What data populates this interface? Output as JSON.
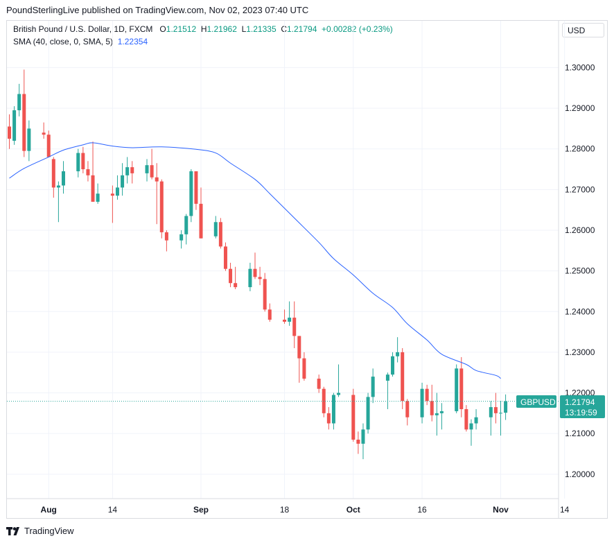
{
  "attribution": "PoundSterlingLive published on TradingView.com, Nov 02, 2023 07:40 UTC",
  "legend": {
    "symbol_line": "British Pound / U.S. Dollar, 1D, FXCM",
    "open_key": "O",
    "open": "1.21512",
    "high_key": "H",
    "high": "1.21962",
    "low_key": "L",
    "low": "1.21335",
    "close_key": "C",
    "close": "1.21794",
    "change": "+0.00282 (+0.23%)",
    "sma_label": "SMA (40, close, 0, SMA, 5)",
    "sma_value": "1.22354"
  },
  "currency_button": "USD",
  "price_tag": {
    "symbol": "GBPUSD",
    "price": "1.21794",
    "countdown": "13:19:59"
  },
  "brand": "TradingView",
  "colors": {
    "up": "#26a69a",
    "down": "#ef5350",
    "sma": "#2962ff",
    "grid": "#f0f3fa",
    "axis_text": "#131722"
  },
  "chart_data": {
    "type": "candlestick",
    "title": "British Pound / U.S. Dollar, 1D, FXCM",
    "y_ticks": [
      "1.30000",
      "1.29000",
      "1.28000",
      "1.27000",
      "1.26000",
      "1.25000",
      "1.24000",
      "1.23000",
      "1.22000",
      "1.21000",
      "1.20000"
    ],
    "ylim": [
      1.194,
      1.3115
    ],
    "x_ticks": [
      {
        "label": "Aug",
        "date": "2023-08-01",
        "bold": true
      },
      {
        "label": "14",
        "date": "2023-08-14",
        "bold": false
      },
      {
        "label": "Sep",
        "date": "2023-09-01",
        "bold": true
      },
      {
        "label": "18",
        "date": "2023-09-18",
        "bold": false
      },
      {
        "label": "Oct",
        "date": "2023-10-02",
        "bold": true
      },
      {
        "label": "16",
        "date": "2023-10-16",
        "bold": false
      },
      {
        "label": "Nov",
        "date": "2023-11-01",
        "bold": true
      },
      {
        "label": "14",
        "date": "2023-11-14",
        "bold": false
      }
    ],
    "last_price": 1.21794,
    "candles": [
      {
        "d": "2023-07-24",
        "o": 1.2855,
        "h": 1.2885,
        "l": 1.28,
        "c": 1.2825
      },
      {
        "d": "2023-07-25",
        "o": 1.282,
        "h": 1.2905,
        "l": 1.281,
        "c": 1.2895
      },
      {
        "d": "2023-07-26",
        "o": 1.2895,
        "h": 1.296,
        "l": 1.288,
        "c": 1.2935
      },
      {
        "d": "2023-07-27",
        "o": 1.2935,
        "h": 1.2995,
        "l": 1.278,
        "c": 1.2795
      },
      {
        "d": "2023-07-28",
        "o": 1.2795,
        "h": 1.287,
        "l": 1.277,
        "c": 1.285
      },
      {
        "d": "2023-07-31",
        "o": 1.284,
        "h": 1.2865,
        "l": 1.2825,
        "c": 1.2835
      },
      {
        "d": "2023-08-01",
        "o": 1.2835,
        "h": 1.2845,
        "l": 1.278,
        "c": 1.278
      },
      {
        "d": "2023-08-02",
        "o": 1.2775,
        "h": 1.278,
        "l": 1.268,
        "c": 1.2705
      },
      {
        "d": "2023-08-03",
        "o": 1.2705,
        "h": 1.272,
        "l": 1.262,
        "c": 1.271
      },
      {
        "d": "2023-08-04",
        "o": 1.271,
        "h": 1.277,
        "l": 1.269,
        "c": 1.2745
      },
      {
        "d": "2023-08-07",
        "o": 1.2745,
        "h": 1.28,
        "l": 1.273,
        "c": 1.279
      },
      {
        "d": "2023-08-08",
        "o": 1.279,
        "h": 1.2805,
        "l": 1.274,
        "c": 1.275
      },
      {
        "d": "2023-08-09",
        "o": 1.275,
        "h": 1.277,
        "l": 1.272,
        "c": 1.2735
      },
      {
        "d": "2023-08-10",
        "o": 1.2735,
        "h": 1.2818,
        "l": 1.267,
        "c": 1.267
      },
      {
        "d": "2023-08-11",
        "o": 1.267,
        "h": 1.2715,
        "l": 1.2665,
        "c": 1.269
      },
      {
        "d": "2023-08-14",
        "o": 1.269,
        "h": 1.271,
        "l": 1.2618,
        "c": 1.2685
      },
      {
        "d": "2023-08-15",
        "o": 1.2685,
        "h": 1.2735,
        "l": 1.2675,
        "c": 1.2705
      },
      {
        "d": "2023-08-16",
        "o": 1.2705,
        "h": 1.2765,
        "l": 1.2685,
        "c": 1.2735
      },
      {
        "d": "2023-08-17",
        "o": 1.2735,
        "h": 1.278,
        "l": 1.2715,
        "c": 1.2755
      },
      {
        "d": "2023-08-18",
        "o": 1.2755,
        "h": 1.277,
        "l": 1.2715,
        "c": 1.274
      },
      {
        "d": "2023-08-21",
        "o": 1.274,
        "h": 1.2775,
        "l": 1.272,
        "c": 1.276
      },
      {
        "d": "2023-08-22",
        "o": 1.276,
        "h": 1.28,
        "l": 1.2725,
        "c": 1.273
      },
      {
        "d": "2023-08-23",
        "o": 1.273,
        "h": 1.2765,
        "l": 1.2615,
        "c": 1.272
      },
      {
        "d": "2023-08-24",
        "o": 1.272,
        "h": 1.2725,
        "l": 1.258,
        "c": 1.2595
      },
      {
        "d": "2023-08-25",
        "o": 1.2595,
        "h": 1.26,
        "l": 1.2548,
        "c": 1.2575
      },
      {
        "d": "2023-08-28",
        "o": 1.2575,
        "h": 1.26,
        "l": 1.2555,
        "c": 1.259
      },
      {
        "d": "2023-08-29",
        "o": 1.259,
        "h": 1.264,
        "l": 1.2565,
        "c": 1.2635
      },
      {
        "d": "2023-08-30",
        "o": 1.2635,
        "h": 1.275,
        "l": 1.262,
        "c": 1.2745
      },
      {
        "d": "2023-08-31",
        "o": 1.2745,
        "h": 1.2735,
        "l": 1.265,
        "c": 1.2665
      },
      {
        "d": "2023-09-01",
        "o": 1.2665,
        "h": 1.2705,
        "l": 1.258,
        "c": 1.258
      },
      {
        "d": "2023-09-04",
        "o": 1.2585,
        "h": 1.2635,
        "l": 1.258,
        "c": 1.262
      },
      {
        "d": "2023-09-05",
        "o": 1.262,
        "h": 1.263,
        "l": 1.2555,
        "c": 1.256
      },
      {
        "d": "2023-09-06",
        "o": 1.256,
        "h": 1.257,
        "l": 1.25,
        "c": 1.2505
      },
      {
        "d": "2023-09-07",
        "o": 1.2505,
        "h": 1.252,
        "l": 1.246,
        "c": 1.247
      },
      {
        "d": "2023-09-08",
        "o": 1.247,
        "h": 1.251,
        "l": 1.2455,
        "c": 1.246
      },
      {
        "d": "2023-09-11",
        "o": 1.246,
        "h": 1.252,
        "l": 1.245,
        "c": 1.2505
      },
      {
        "d": "2023-09-12",
        "o": 1.2505,
        "h": 1.2545,
        "l": 1.248,
        "c": 1.2485
      },
      {
        "d": "2023-09-13",
        "o": 1.2485,
        "h": 1.251,
        "l": 1.2465,
        "c": 1.248
      },
      {
        "d": "2023-09-14",
        "o": 1.248,
        "h": 1.2495,
        "l": 1.24,
        "c": 1.2405
      },
      {
        "d": "2023-09-15",
        "o": 1.2405,
        "h": 1.242,
        "l": 1.2375,
        "c": 1.238
      },
      {
        "d": "2023-09-18",
        "o": 1.238,
        "h": 1.2405,
        "l": 1.237,
        "c": 1.2375
      },
      {
        "d": "2023-09-19",
        "o": 1.2375,
        "h": 1.2425,
        "l": 1.2365,
        "c": 1.2385
      },
      {
        "d": "2023-09-20",
        "o": 1.2385,
        "h": 1.2425,
        "l": 1.231,
        "c": 1.234
      },
      {
        "d": "2023-09-21",
        "o": 1.234,
        "h": 1.234,
        "l": 1.2225,
        "c": 1.2285
      },
      {
        "d": "2023-09-22",
        "o": 1.2285,
        "h": 1.23,
        "l": 1.223,
        "c": 1.2235
      },
      {
        "d": "2023-09-25",
        "o": 1.2235,
        "h": 1.2245,
        "l": 1.22,
        "c": 1.221
      },
      {
        "d": "2023-09-26",
        "o": 1.221,
        "h": 1.2215,
        "l": 1.214,
        "c": 1.215
      },
      {
        "d": "2023-09-27",
        "o": 1.215,
        "h": 1.2165,
        "l": 1.211,
        "c": 1.2125
      },
      {
        "d": "2023-09-28",
        "o": 1.2125,
        "h": 1.22,
        "l": 1.211,
        "c": 1.2195
      },
      {
        "d": "2023-09-29",
        "o": 1.2195,
        "h": 1.227,
        "l": 1.219,
        "c": 1.22
      },
      {
        "d": "2023-10-02",
        "o": 1.2195,
        "h": 1.221,
        "l": 1.208,
        "c": 1.2085
      },
      {
        "d": "2023-10-03",
        "o": 1.2085,
        "h": 1.2105,
        "l": 1.205,
        "c": 1.2075
      },
      {
        "d": "2023-10-04",
        "o": 1.2075,
        "h": 1.2125,
        "l": 1.2037,
        "c": 1.211
      },
      {
        "d": "2023-10-05",
        "o": 1.211,
        "h": 1.22,
        "l": 1.21,
        "c": 1.219
      },
      {
        "d": "2023-10-06",
        "o": 1.219,
        "h": 1.226,
        "l": 1.2175,
        "c": 1.224
      },
      {
        "d": "2023-10-09",
        "o": 1.223,
        "h": 1.225,
        "l": 1.216,
        "c": 1.2245
      },
      {
        "d": "2023-10-10",
        "o": 1.2245,
        "h": 1.23,
        "l": 1.224,
        "c": 1.229
      },
      {
        "d": "2023-10-11",
        "o": 1.229,
        "h": 1.2337,
        "l": 1.2275,
        "c": 1.23
      },
      {
        "d": "2023-10-12",
        "o": 1.23,
        "h": 1.231,
        "l": 1.216,
        "c": 1.218
      },
      {
        "d": "2023-10-13",
        "o": 1.218,
        "h": 1.2185,
        "l": 1.212,
        "c": 1.214
      },
      {
        "d": "2023-10-16",
        "o": 1.214,
        "h": 1.2225,
        "l": 1.2125,
        "c": 1.221
      },
      {
        "d": "2023-10-17",
        "o": 1.221,
        "h": 1.222,
        "l": 1.217,
        "c": 1.218
      },
      {
        "d": "2023-10-18",
        "o": 1.218,
        "h": 1.222,
        "l": 1.213,
        "c": 1.2145
      },
      {
        "d": "2023-10-19",
        "o": 1.2145,
        "h": 1.22,
        "l": 1.2095,
        "c": 1.215
      },
      {
        "d": "2023-10-20",
        "o": 1.215,
        "h": 1.2175,
        "l": 1.211,
        "c": 1.2155
      },
      {
        "d": "2023-10-23",
        "o": 1.2155,
        "h": 1.227,
        "l": 1.215,
        "c": 1.226
      },
      {
        "d": "2023-10-24",
        "o": 1.226,
        "h": 1.2288,
        "l": 1.214,
        "c": 1.216
      },
      {
        "d": "2023-10-25",
        "o": 1.216,
        "h": 1.217,
        "l": 1.2105,
        "c": 1.211
      },
      {
        "d": "2023-10-26",
        "o": 1.211,
        "h": 1.2135,
        "l": 1.207,
        "c": 1.2125
      },
      {
        "d": "2023-10-27",
        "o": 1.2125,
        "h": 1.216,
        "l": 1.211,
        "c": 1.214
      },
      {
        "d": "2023-10-30",
        "o": 1.214,
        "h": 1.218,
        "l": 1.2095,
        "c": 1.2165
      },
      {
        "d": "2023-10-31",
        "o": 1.2165,
        "h": 1.22,
        "l": 1.2125,
        "c": 1.215
      },
      {
        "d": "2023-11-01",
        "o": 1.215,
        "h": 1.218,
        "l": 1.2095,
        "c": 1.2151
      },
      {
        "d": "2023-11-02",
        "o": 1.21512,
        "h": 1.21962,
        "l": 1.21335,
        "c": 1.21794
      }
    ],
    "sma": [
      {
        "d": "2023-07-24",
        "v": 1.2728
      },
      {
        "d": "2023-07-27",
        "v": 1.2752
      },
      {
        "d": "2023-08-01",
        "v": 1.278
      },
      {
        "d": "2023-08-04",
        "v": 1.2797
      },
      {
        "d": "2023-08-08",
        "v": 1.281
      },
      {
        "d": "2023-08-10",
        "v": 1.2815
      },
      {
        "d": "2023-08-14",
        "v": 1.2807
      },
      {
        "d": "2023-08-18",
        "v": 1.2803
      },
      {
        "d": "2023-08-24",
        "v": 1.2805
      },
      {
        "d": "2023-08-31",
        "v": 1.2799
      },
      {
        "d": "2023-09-04",
        "v": 1.279
      },
      {
        "d": "2023-09-07",
        "v": 1.2765
      },
      {
        "d": "2023-09-12",
        "v": 1.2725
      },
      {
        "d": "2023-09-15",
        "v": 1.269
      },
      {
        "d": "2023-09-20",
        "v": 1.263
      },
      {
        "d": "2023-09-25",
        "v": 1.257
      },
      {
        "d": "2023-09-28",
        "v": 1.253
      },
      {
        "d": "2023-10-02",
        "v": 1.249
      },
      {
        "d": "2023-10-06",
        "v": 1.2445
      },
      {
        "d": "2023-10-10",
        "v": 1.241
      },
      {
        "d": "2023-10-13",
        "v": 1.237
      },
      {
        "d": "2023-10-17",
        "v": 1.233
      },
      {
        "d": "2023-10-20",
        "v": 1.2295
      },
      {
        "d": "2023-10-25",
        "v": 1.227
      },
      {
        "d": "2023-10-27",
        "v": 1.2255
      },
      {
        "d": "2023-10-31",
        "v": 1.2243
      },
      {
        "d": "2023-11-01",
        "v": 1.22354
      }
    ]
  }
}
